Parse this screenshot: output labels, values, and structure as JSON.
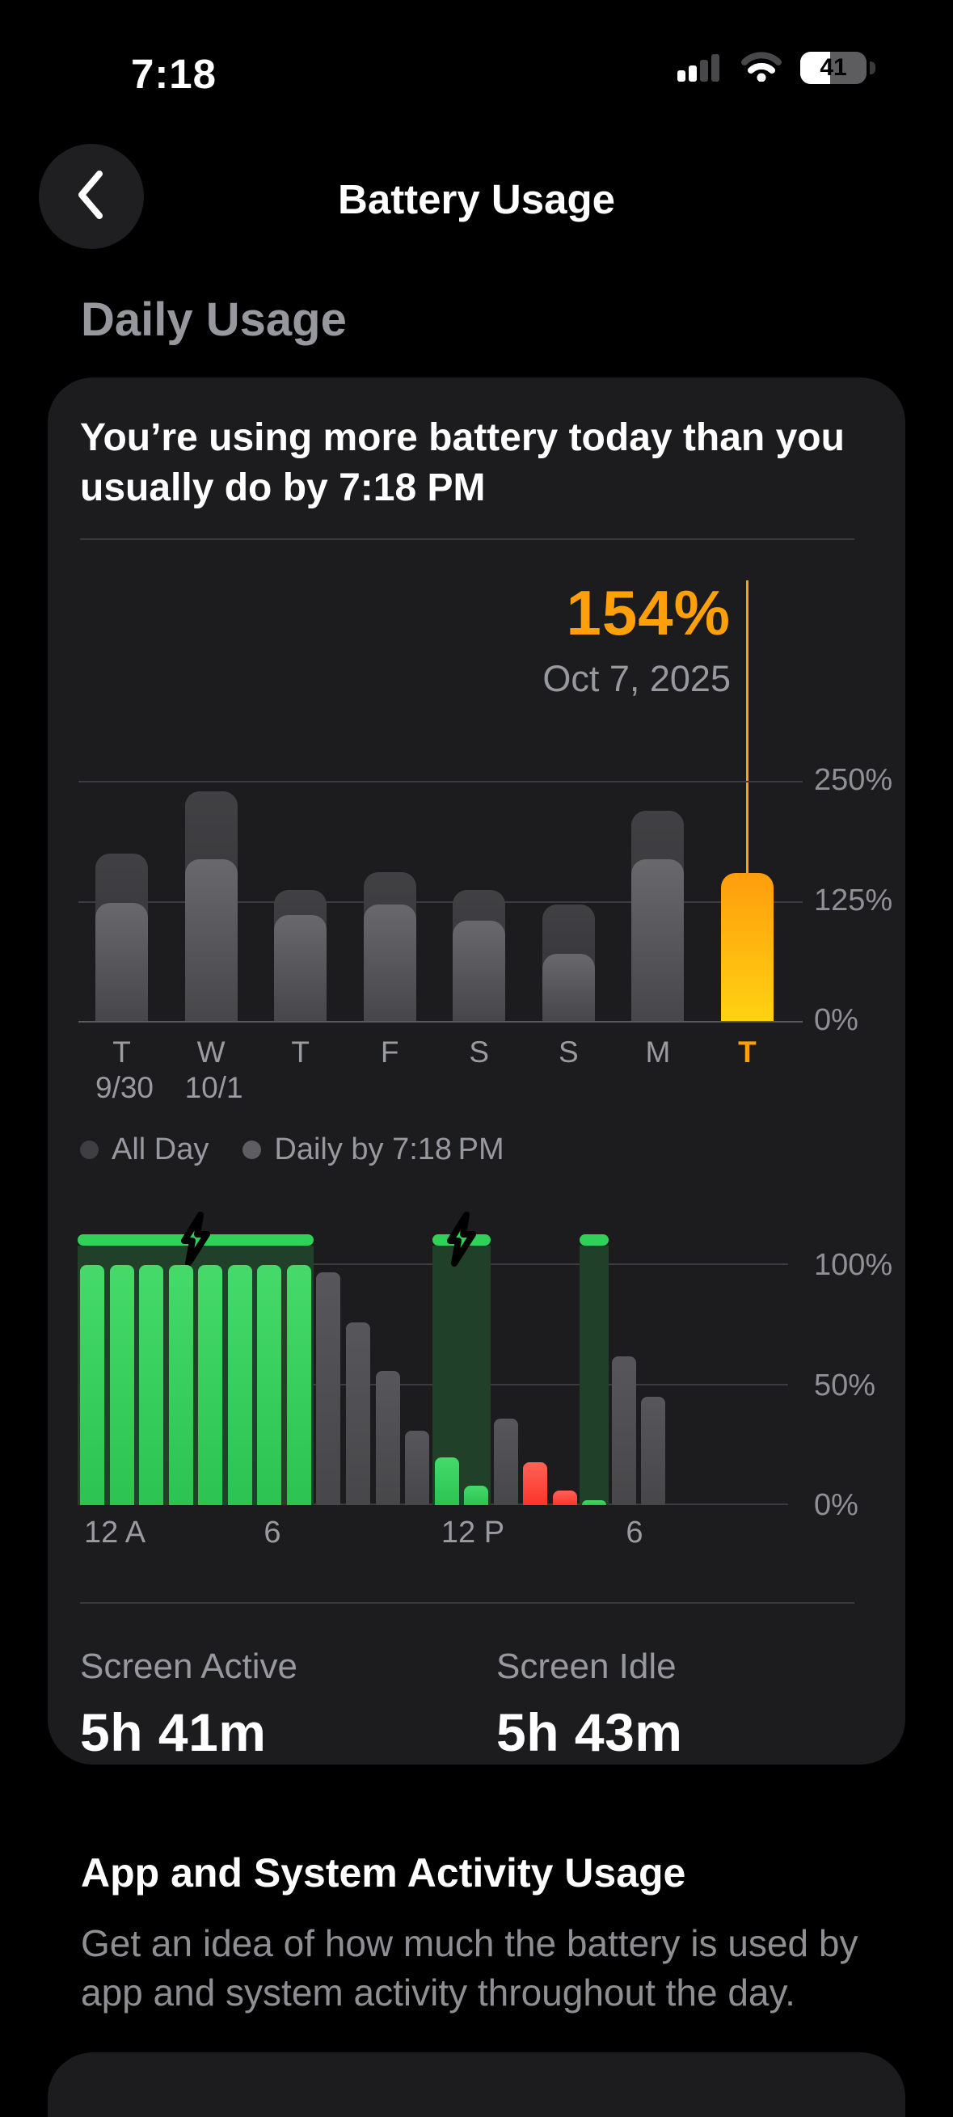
{
  "status_bar": {
    "time": "7:18",
    "battery_percent": "41"
  },
  "nav": {
    "title": "Battery Usage"
  },
  "section": {
    "daily_usage_label": "Daily Usage"
  },
  "card": {
    "headline_line1": "You’re using more battery today than you",
    "headline_line2": "usually do by 7:18 PM",
    "stats": {
      "active_label": "Screen Active",
      "active_value": "5h 41m",
      "idle_label": "Screen Idle",
      "idle_value": "5h 43m"
    }
  },
  "chart_data": [
    {
      "type": "bar",
      "title": "Daily battery usage vs previous days",
      "unit": "%",
      "ylim": [
        0,
        250
      ],
      "yticks": [
        "250%",
        "125%",
        "0%"
      ],
      "grid": true,
      "legend_position": "bottom",
      "categories": [
        "T",
        "W",
        "T",
        "F",
        "S",
        "S",
        "M",
        "T"
      ],
      "category_dates": [
        "9/30",
        "10/1",
        "",
        "",
        "",
        "",
        "",
        ""
      ],
      "series": [
        {
          "name": "All Day",
          "values": [
            174,
            239,
            136,
            155,
            136,
            121,
            219,
            154
          ]
        },
        {
          "name": "Daily by 7:18 PM",
          "values": [
            123,
            168,
            110,
            121,
            104,
            70,
            168,
            154
          ]
        }
      ],
      "legend": [
        "All Day",
        "Daily by 7:18 PM"
      ],
      "selected": {
        "index": 7,
        "value_label": "154%",
        "date_label": "Oct 7, 2025"
      }
    },
    {
      "type": "bar",
      "title": "Battery level by hour",
      "unit": "%",
      "ylim": [
        0,
        100
      ],
      "yticks": [
        "100%",
        "50%",
        "0%"
      ],
      "xticks": [
        {
          "label": "12 A",
          "x": 83
        },
        {
          "label": "6",
          "x": 278
        },
        {
          "label": "12 P",
          "x": 526
        },
        {
          "label": "6",
          "x": 726
        }
      ],
      "hours": [
        "12A",
        "1A",
        "2A",
        "3A",
        "4A",
        "5A",
        "6A",
        "7A",
        "8A",
        "9A",
        "10A",
        "11A",
        "12P",
        "1P",
        "2P",
        "3P",
        "4P",
        "5P",
        "6P",
        "7P"
      ],
      "values": [
        100,
        100,
        100,
        100,
        100,
        100,
        100,
        100,
        97,
        76,
        56,
        31,
        20,
        8,
        36,
        18,
        6,
        2,
        62,
        45
      ],
      "states": [
        "charging",
        "charging",
        "charging",
        "charging",
        "charging",
        "charging",
        "charging",
        "charging",
        "normal",
        "normal",
        "normal",
        "normal",
        "charging",
        "charging",
        "normal",
        "low",
        "low",
        "charging",
        "normal",
        "normal"
      ],
      "charging_regions": [
        {
          "from": 0,
          "to": 7,
          "bolt": true
        },
        {
          "from": 12,
          "to": 13,
          "bolt": true
        },
        {
          "from": 17,
          "to": 17,
          "bolt": false
        }
      ]
    }
  ],
  "bottom": {
    "heading": "App and System Activity Usage",
    "body_line1": "Get an idea of how much the battery is used by",
    "body_line2": "app and system activity throughout the day."
  },
  "colors": {
    "accent_orange": "#ff9f0a",
    "bar_yellow": "#ffd212",
    "charge_green": "#30d158",
    "charge_region_bg": "#20402a",
    "low_red": "#ff453a",
    "bar_gray_back": "#39393c",
    "bar_gray_front": "#5c5c60",
    "card_bg": "#1c1c1e",
    "text_secondary": "#98989f"
  }
}
